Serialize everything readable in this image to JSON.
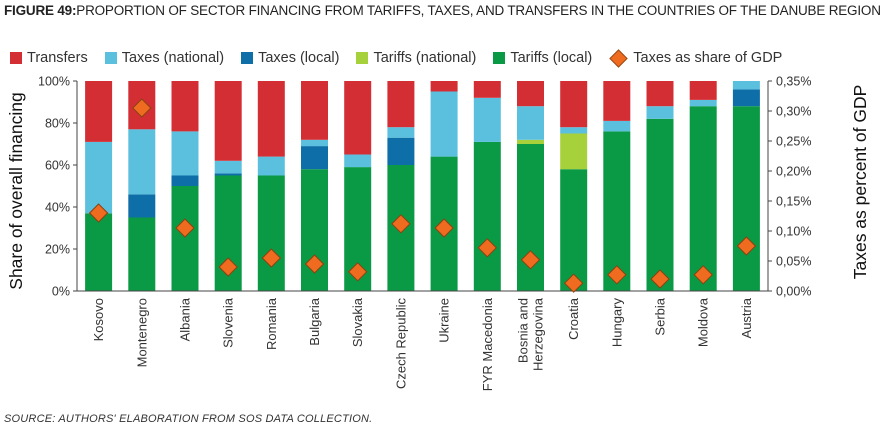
{
  "figure": {
    "label": "FIGURE 49:",
    "title": "PROPORTION OF SECTOR FINANCING FROM TARIFFS, TAXES, AND TRANSFERS IN THE COUNTRIES OF THE DANUBE REGION",
    "source": "SOURCE: AUTHORS' ELABORATION FROM SOS DATA COLLECTION."
  },
  "chart_data": {
    "type": "bar",
    "stacked": true,
    "categories": [
      "Kosovo",
      "Montenegro",
      "Albania",
      "Slovenia",
      "Romania",
      "Bulgaria",
      "Slovakia",
      "Czech Republic",
      "Ukraine",
      "FYR Macedonia",
      "Bosnia and Herzegovina",
      "Croatia",
      "Hungary",
      "Serbia",
      "Moldova",
      "Austria"
    ],
    "category_lines": [
      [
        "Kosovo"
      ],
      [
        "Montenegro"
      ],
      [
        "Albania"
      ],
      [
        "Slovenia"
      ],
      [
        "Romania"
      ],
      [
        "Bulgaria"
      ],
      [
        "Slovakia"
      ],
      [
        "Czech Republic"
      ],
      [
        "Ukraine"
      ],
      [
        "FYR Macedonia"
      ],
      [
        "Bosnia and",
        "Herzegovina"
      ],
      [
        "Croatia"
      ],
      [
        "Hungary"
      ],
      [
        "Serbia"
      ],
      [
        "Moldova"
      ],
      [
        "Austria"
      ]
    ],
    "series": [
      {
        "name": "Tariffs (local)",
        "color": "#0a9a45",
        "values": [
          37,
          35,
          50,
          55,
          55,
          58,
          59,
          60,
          64,
          71,
          70,
          58,
          76,
          82,
          88,
          88
        ]
      },
      {
        "name": "Tariffs (national)",
        "color": "#a6d13a",
        "values": [
          0,
          0,
          0,
          0,
          0,
          0,
          0,
          0,
          0,
          0,
          2,
          17,
          0,
          0,
          0,
          0
        ]
      },
      {
        "name": "Taxes (local)",
        "color": "#0d6ea8",
        "values": [
          0,
          11,
          5,
          1,
          0,
          11,
          0,
          13,
          0,
          0,
          0,
          0,
          0,
          0,
          0,
          8
        ]
      },
      {
        "name": "Taxes (national)",
        "color": "#5bc0de",
        "values": [
          34,
          31,
          21,
          6,
          9,
          3,
          6,
          5,
          31,
          21,
          16,
          3,
          5,
          6,
          3,
          4
        ]
      },
      {
        "name": "Transfers",
        "color": "#d42e35",
        "values": [
          29,
          23,
          24,
          38,
          36,
          28,
          35,
          22,
          5,
          8,
          12,
          22,
          19,
          12,
          9,
          0
        ]
      }
    ],
    "secondary_series": {
      "name": "Taxes as share of GDP",
      "type": "scatter",
      "marker": "diamond",
      "color": "#ef6b1f",
      "values": [
        0.13,
        0.305,
        0.105,
        0.04,
        0.055,
        0.045,
        0.032,
        0.112,
        0.105,
        0.072,
        0.052,
        0.013,
        0.027,
        0.02,
        0.027,
        0.075
      ]
    },
    "legend_order": [
      "Transfers",
      "Taxes (national)",
      "Taxes (local)",
      "Tariffs (national)",
      "Tariffs (local)",
      "Taxes as share of GDP"
    ],
    "legend_position": "top",
    "ylabel": "Share of overall financing",
    "y2label": "Taxes as percent of GDP",
    "ylim": [
      0,
      100
    ],
    "y2lim": [
      0,
      0.35
    ],
    "yticks": [
      "0%",
      "20%",
      "40%",
      "60%",
      "80%",
      "100%"
    ],
    "y2ticks": [
      "0,00%",
      "0,05%",
      "0,10%",
      "0,15%",
      "0,20%",
      "0,25%",
      "0,30%",
      "0,35%"
    ],
    "grid": false
  }
}
